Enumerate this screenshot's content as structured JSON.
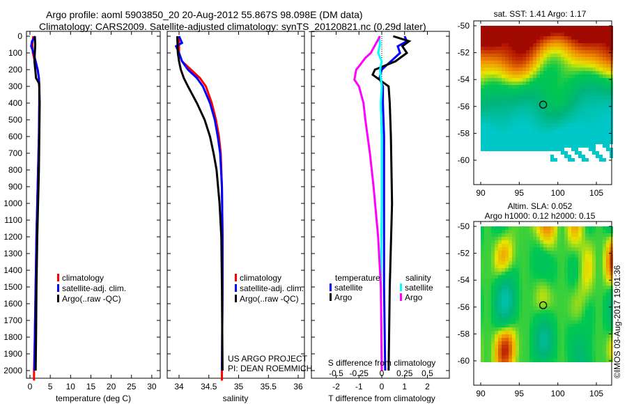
{
  "title_line1": "Argo profile: aoml 5903850_20 20-Aug-2012 55.867S 98.098E (DM data)",
  "title_line2": "Climatology: CARS2009. Satellite-adjusted climatology: synTS_20120821.nc (0.29d later)",
  "colors": {
    "climatology": "#ff0000",
    "satellite": "#0000ff",
    "argo": "#000000",
    "sal_satellite": "#00ffff",
    "sal_argo": "#ff00ff"
  },
  "credit": {
    "line1": "US ARGO PROJECT",
    "line2": "PI: DEAN ROEMMICH"
  },
  "watermark": "©IMOS 03-Aug-2017 19:01:36",
  "chart_data": [
    {
      "type": "line",
      "xlabel": "temperature (deg C)",
      "ylabel": "",
      "xlim": [
        -1,
        32
      ],
      "ylim": [
        2060,
        0
      ],
      "xticks": [
        "0",
        "5",
        "10",
        "15",
        "20",
        "25",
        "30"
      ],
      "yticks": [
        "0",
        "100",
        "200",
        "300",
        "400",
        "500",
        "600",
        "700",
        "800",
        "900",
        "1000",
        "1100",
        "1200",
        "1300",
        "1400",
        "1500",
        "1600",
        "1700",
        "1800",
        "1900",
        "2000"
      ],
      "legend": [
        "climatology",
        "satellite-adj. clim.",
        "Argo(..raw -QC)"
      ],
      "series": [
        {
          "name": "climatology",
          "depth": [
            0,
            50,
            100,
            150,
            200,
            250,
            300,
            400,
            600,
            800,
            1000,
            1200,
            1500,
            1800,
            2000,
            2060
          ],
          "values": [
            0.8,
            0.6,
            0.7,
            1.2,
            1.9,
            2.2,
            2.3,
            2.3,
            2.2,
            2.0,
            1.8,
            1.6,
            1.4,
            1.2,
            1.0,
            1.0
          ]
        },
        {
          "name": "satellite-adj. clim.",
          "depth": [
            0,
            30,
            60,
            100,
            150,
            200,
            250,
            300,
            400,
            600,
            800,
            1000,
            1200,
            1500,
            1800,
            2000
          ],
          "values": [
            1.3,
            0.5,
            0.3,
            0.9,
            1.4,
            1.9,
            2.2,
            2.3,
            2.3,
            2.2,
            2.0,
            1.8,
            1.6,
            1.4,
            1.2,
            1.1
          ]
        },
        {
          "name": "Argo(..raw -QC)",
          "depth": [
            0,
            50,
            100,
            150,
            200,
            250,
            280,
            300,
            400,
            600,
            800,
            1000,
            1200,
            1500,
            1800,
            2000
          ],
          "values": [
            1.2,
            1.3,
            1.2,
            1.1,
            1.3,
            1.5,
            2.2,
            2.3,
            2.4,
            2.3,
            2.2,
            2.0,
            1.8,
            1.6,
            1.5,
            1.4
          ]
        }
      ]
    },
    {
      "type": "line",
      "xlabel": "salinity",
      "xlim": [
        33.65,
        36.1
      ],
      "ylim": [
        2060,
        0
      ],
      "xticks": [
        "34",
        "34.5",
        "35",
        "35.5",
        "36"
      ],
      "legend": [
        "climatology",
        "satellite-adj. clim.",
        "Argo(..raw -QC)"
      ],
      "series": [
        {
          "name": "climatology",
          "depth": [
            0,
            100,
            150,
            200,
            250,
            300,
            400,
            500,
            600,
            700,
            900,
            1200,
            1500,
            2000,
            2060
          ],
          "values": [
            34.0,
            34.0,
            34.05,
            34.2,
            34.35,
            34.45,
            34.55,
            34.62,
            34.67,
            34.7,
            34.72,
            34.73,
            34.73,
            34.72,
            34.72
          ]
        },
        {
          "name": "satellite-adj. clim.",
          "depth": [
            0,
            40,
            60,
            100,
            150,
            200,
            250,
            300,
            400,
            500,
            600,
            700,
            900,
            1200,
            1500,
            2000
          ],
          "values": [
            34.0,
            34.05,
            33.95,
            34.0,
            34.05,
            34.15,
            34.3,
            34.4,
            34.52,
            34.6,
            34.65,
            34.69,
            34.72,
            34.73,
            34.73,
            34.72
          ]
        },
        {
          "name": "Argo(..raw -QC)",
          "depth": [
            0,
            100,
            150,
            200,
            250,
            300,
            400,
            500,
            600,
            700,
            800,
            1000,
            1200,
            1500,
            2000
          ],
          "values": [
            33.97,
            33.98,
            34.0,
            34.03,
            34.08,
            34.15,
            34.3,
            34.43,
            34.52,
            34.58,
            34.63,
            34.68,
            34.71,
            34.72,
            34.73
          ]
        }
      ]
    },
    {
      "type": "line",
      "xlabel": "T difference from climatology",
      "x2label": "S difference from climatology",
      "xlim": [
        -3.1,
        2.9
      ],
      "x2lim": [
        -0.775,
        0.725
      ],
      "ylim": [
        2060,
        0
      ],
      "xticks": [
        "-2",
        "-1",
        "0",
        "1",
        "2"
      ],
      "x2ticks": [
        "-0.5",
        "-0.25",
        "0",
        "0.25",
        "0.5"
      ],
      "legend_titles": {
        "temperature": "temperature",
        "salinity": "salinity"
      },
      "legend": {
        "t_satellite": "satellite",
        "t_argo": "Argo",
        "s_satellite": "satellite",
        "s_argo": "Argo"
      },
      "series": [
        {
          "name": "T satellite",
          "axis": "T",
          "depth": [
            0,
            30,
            60,
            100,
            150,
            200,
            250,
            300,
            400,
            600,
            1000,
            1500,
            2000
          ],
          "values": [
            1.0,
            1.1,
            0.7,
            0.8,
            0.4,
            0.0,
            -0.1,
            0.05,
            0.05,
            0.1,
            0.1,
            0.1,
            0.15
          ]
        },
        {
          "name": "T Argo",
          "axis": "T",
          "depth": [
            0,
            30,
            60,
            100,
            150,
            200,
            230,
            260,
            300,
            400,
            600,
            1000,
            1500,
            2000
          ],
          "values": [
            0.5,
            1.2,
            0.9,
            1.1,
            0.6,
            -0.3,
            -0.4,
            -0.1,
            0.3,
            0.35,
            0.4,
            0.45,
            0.35,
            0.3
          ]
        },
        {
          "name": "S satellite",
          "axis": "S",
          "depth": [
            0,
            50,
            100,
            150,
            200,
            300,
            400,
            600,
            1000,
            1500,
            2000
          ],
          "values": [
            -0.03,
            -0.02,
            -0.04,
            0.0,
            -0.02,
            0.0,
            -0.01,
            0.0,
            0.0,
            -0.01,
            0.0
          ]
        },
        {
          "name": "S Argo",
          "axis": "S",
          "depth": [
            0,
            60,
            100,
            130,
            180,
            200,
            260,
            300,
            400,
            500,
            700,
            900,
            1200,
            1500,
            2000
          ],
          "values": [
            -0.02,
            -0.08,
            -0.12,
            -0.18,
            -0.25,
            -0.28,
            -0.3,
            -0.25,
            -0.2,
            -0.18,
            -0.13,
            -0.09,
            -0.04,
            -0.01,
            0.0
          ]
        }
      ]
    },
    {
      "type": "heatmap",
      "title": "sat. SST: 1.41  Argo: 1.17",
      "xlim": [
        89,
        107
      ],
      "ylim": [
        -62,
        -49.6
      ],
      "xticks": [
        "90",
        "95",
        "100",
        "105"
      ],
      "yticks": [
        "-50",
        "-52",
        "-54",
        "-56",
        "-58",
        "-60"
      ],
      "marker": {
        "lon": 98.098,
        "lat": -55.867
      }
    },
    {
      "type": "heatmap",
      "title": "Altim. SLA: 0.052",
      "subtitle": "Argo h1000: 0.12 h2000: 0.15",
      "xlim": [
        89,
        107
      ],
      "ylim": [
        -62,
        -49.6
      ],
      "xticks": [
        "90",
        "95",
        "100",
        "105"
      ],
      "yticks": [
        "-50",
        "-52",
        "-54",
        "-56",
        "-58",
        "-60"
      ],
      "marker": {
        "lon": 98.098,
        "lat": -55.867
      }
    }
  ]
}
